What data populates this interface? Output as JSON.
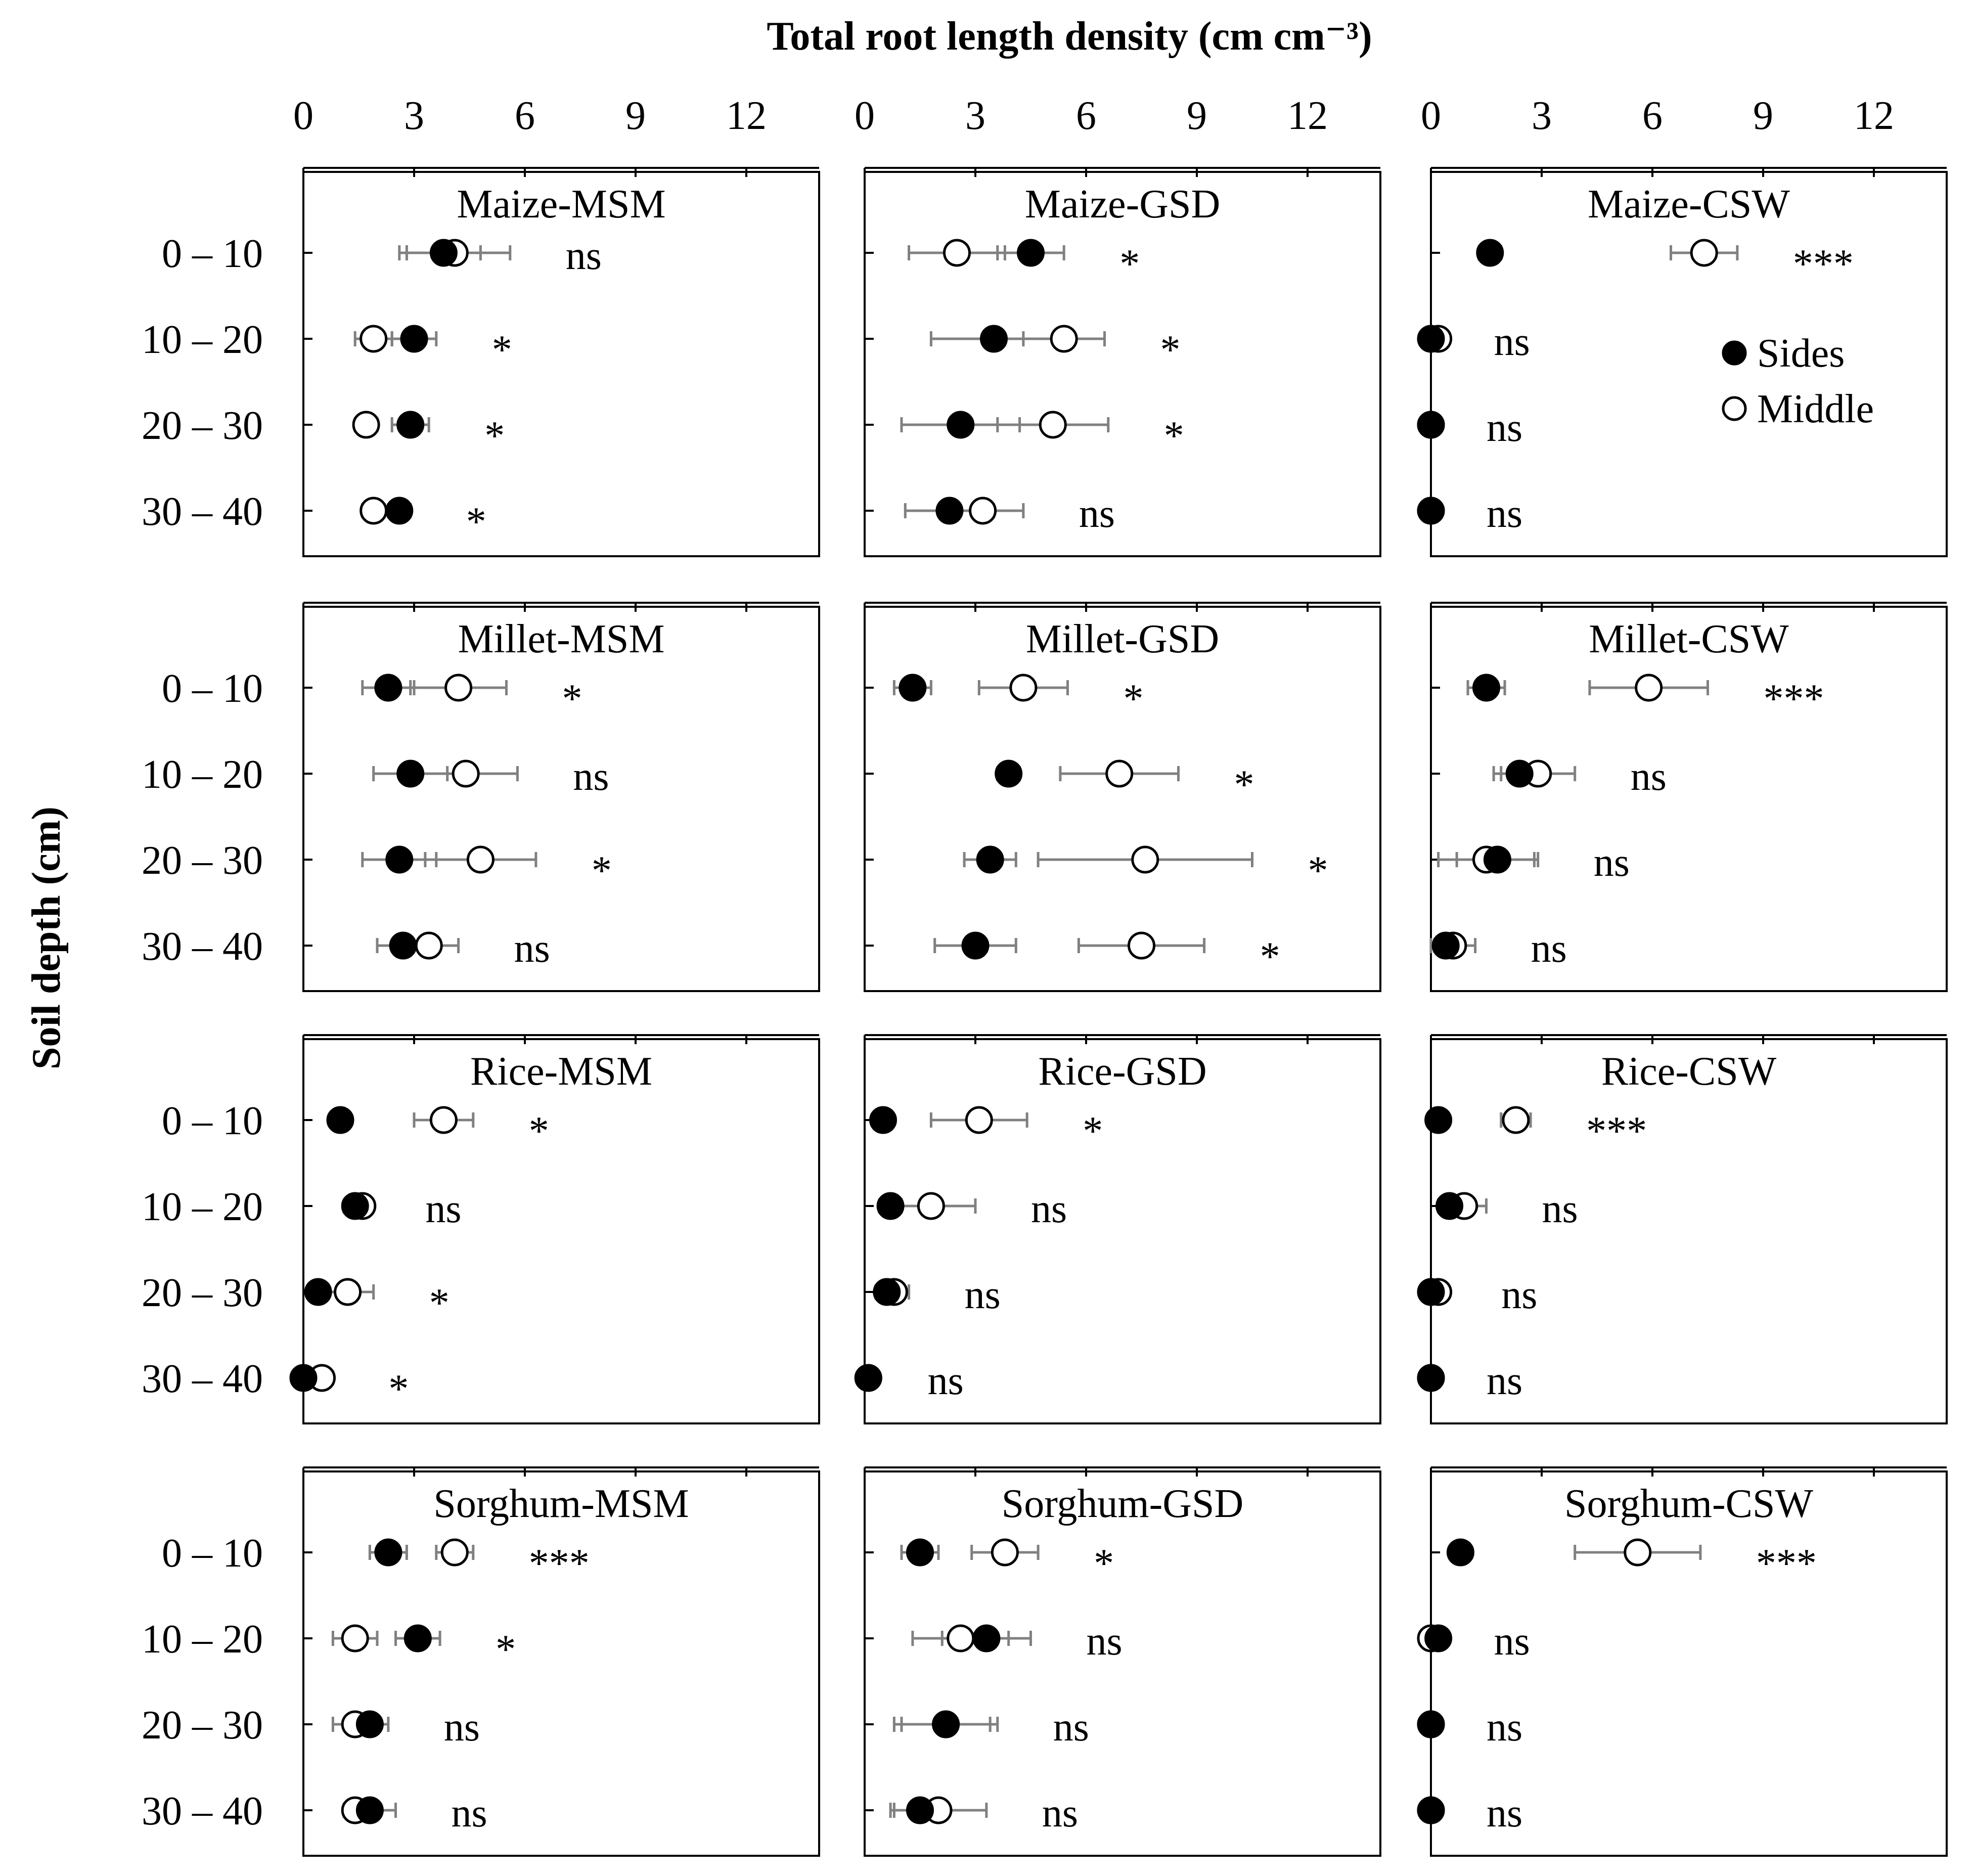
{
  "chart_data": {
    "type": "scatter",
    "title": "Total root length density (cm cm⁻³)",
    "xlabel": "Total root length density (cm cm⁻³)",
    "ylabel": "Soil depth (cm)",
    "xlim": [
      0,
      14
    ],
    "x_ticks": [
      "0",
      "3",
      "6",
      "9",
      "12"
    ],
    "depths": [
      "0 – 10",
      "10 – 20",
      "20 – 30",
      "30 – 40"
    ],
    "legend": {
      "sides": "Sides",
      "middle": "Middle"
    },
    "colors": {
      "axis": "#000000",
      "errorbar": "#808080",
      "sides_fill": "#000000",
      "middle_fill": "#ffffff"
    },
    "panels": [
      {
        "title": "Maize-MSM",
        "sides": [
          3.8,
          3.0,
          2.9,
          2.6
        ],
        "sides_err": [
          1.0,
          0.6,
          0.5,
          0.3
        ],
        "middle": [
          4.1,
          1.9,
          1.7,
          1.9
        ],
        "middle_err": [
          1.5,
          0.5,
          0.3,
          0.3
        ],
        "sig": [
          "ns",
          "*",
          "*",
          "*"
        ]
      },
      {
        "title": "Maize-GSD",
        "sides": [
          4.5,
          3.5,
          2.6,
          2.3
        ],
        "sides_err": [
          0.9,
          1.7,
          1.6,
          1.2
        ],
        "middle": [
          2.5,
          5.4,
          5.1,
          3.2
        ],
        "middle_err": [
          1.3,
          1.1,
          1.5,
          1.1
        ],
        "sig": [
          "*",
          "*",
          "*",
          "ns"
        ]
      },
      {
        "title": "Maize-CSW",
        "sides": [
          1.6,
          0.0,
          0.0,
          0.0
        ],
        "sides_err": [
          0.3,
          0.0,
          0.0,
          0.0
        ],
        "middle": [
          7.4,
          0.2,
          0.0,
          0.0
        ],
        "middle_err": [
          0.9,
          0.0,
          0.0,
          0.0
        ],
        "sig": [
          "***",
          "ns",
          "ns",
          "ns"
        ]
      },
      {
        "title": "Millet-MSM",
        "sides": [
          2.3,
          2.9,
          2.6,
          2.7
        ],
        "sides_err": [
          0.7,
          1.0,
          1.0,
          0.7
        ],
        "middle": [
          4.2,
          4.4,
          4.8,
          3.4
        ],
        "middle_err": [
          1.3,
          1.4,
          1.5,
          0.8
        ],
        "sig": [
          "*",
          "ns",
          "*",
          "ns"
        ]
      },
      {
        "title": "Millet-GSD",
        "sides": [
          1.3,
          3.9,
          3.4,
          3.0
        ],
        "sides_err": [
          0.5,
          0.3,
          0.7,
          1.1
        ],
        "middle": [
          4.3,
          6.9,
          7.6,
          7.5
        ],
        "middle_err": [
          1.2,
          1.6,
          2.9,
          1.7
        ],
        "sig": [
          "*",
          "*",
          "*",
          "*"
        ]
      },
      {
        "title": "Millet-CSW",
        "sides": [
          1.5,
          2.4,
          1.8,
          0.4
        ],
        "sides_err": [
          0.5,
          0.7,
          1.1,
          0.3
        ],
        "middle": [
          5.9,
          2.9,
          1.5,
          0.6
        ],
        "middle_err": [
          1.6,
          1.0,
          1.3,
          0.6
        ],
        "sig": [
          "***",
          "ns",
          "ns",
          "ns"
        ]
      },
      {
        "title": "Rice-MSM",
        "sides": [
          1.0,
          1.4,
          0.4,
          0.0
        ],
        "sides_err": [
          0.2,
          0.3,
          0.2,
          0.0
        ],
        "middle": [
          3.8,
          1.6,
          1.2,
          0.5
        ],
        "middle_err": [
          0.8,
          0.2,
          0.7,
          0.3
        ],
        "sig": [
          "*",
          "ns",
          "*",
          "*"
        ]
      },
      {
        "title": "Rice-GSD",
        "sides": [
          0.5,
          0.7,
          0.6,
          0.1
        ],
        "sides_err": [
          0.2,
          0.3,
          0.3,
          0.1
        ],
        "middle": [
          3.1,
          1.8,
          0.8,
          0.1
        ],
        "middle_err": [
          1.3,
          1.2,
          0.4,
          0.1
        ],
        "sig": [
          "*",
          "ns",
          "ns",
          "ns"
        ]
      },
      {
        "title": "Rice-CSW",
        "sides": [
          0.2,
          0.5,
          0.0,
          0.0
        ],
        "sides_err": [
          0.1,
          0.3,
          0.1,
          0.0
        ],
        "middle": [
          2.3,
          0.9,
          0.2,
          0.0
        ],
        "middle_err": [
          0.4,
          0.6,
          0.2,
          0.0
        ],
        "sig": [
          "***",
          "ns",
          "ns",
          "ns"
        ]
      },
      {
        "title": "Sorghum-MSM",
        "sides": [
          2.3,
          3.1,
          1.8,
          1.8
        ],
        "sides_err": [
          0.5,
          0.6,
          0.5,
          0.7
        ],
        "middle": [
          4.1,
          1.4,
          1.4,
          1.4
        ],
        "middle_err": [
          0.5,
          0.6,
          0.6,
          0.3
        ],
        "sig": [
          "***",
          "*",
          "ns",
          "ns"
        ]
      },
      {
        "title": "Sorghum-GSD",
        "sides": [
          1.5,
          3.3,
          2.2,
          1.5
        ],
        "sides_err": [
          0.5,
          1.2,
          1.2,
          0.7
        ],
        "middle": [
          3.8,
          2.6,
          2.2,
          2.0
        ],
        "middle_err": [
          0.9,
          1.3,
          1.4,
          1.3
        ],
        "sig": [
          "*",
          "ns",
          "ns",
          "ns"
        ]
      },
      {
        "title": "Sorghum-CSW",
        "sides": [
          0.8,
          0.2,
          0.0,
          0.0
        ],
        "sides_err": [
          0.1,
          0.0,
          0.0,
          0.0
        ],
        "middle": [
          5.6,
          0.0,
          0.0,
          0.0
        ],
        "middle_err": [
          1.7,
          0.0,
          0.0,
          0.0
        ],
        "sig": [
          "***",
          "ns",
          "ns",
          "ns"
        ]
      }
    ]
  }
}
